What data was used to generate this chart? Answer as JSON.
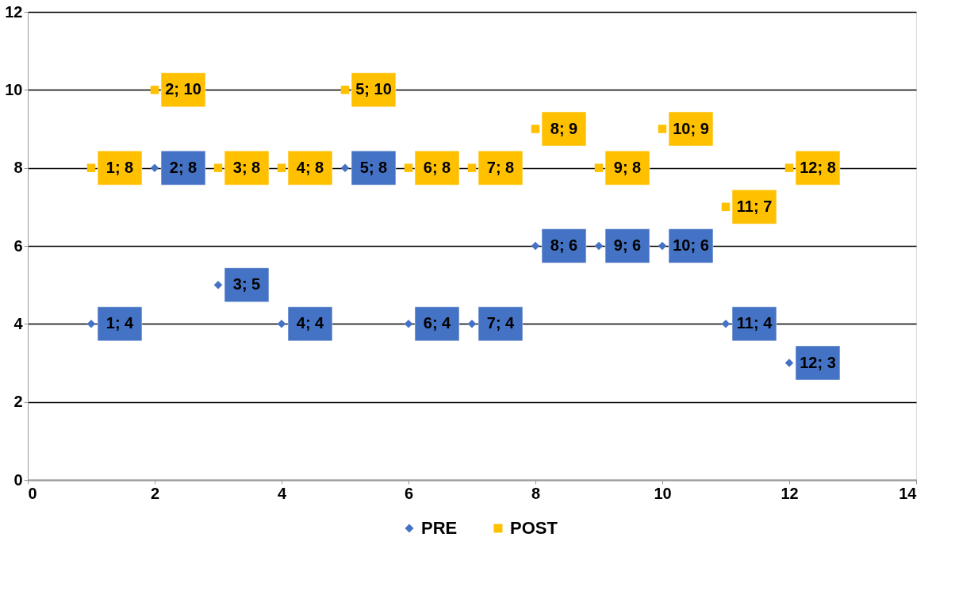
{
  "chart_data": {
    "type": "scatter",
    "x": [
      1,
      2,
      3,
      4,
      5,
      6,
      7,
      8,
      9,
      10,
      11,
      12
    ],
    "series": [
      {
        "name": "PRE",
        "color": "#4472c4",
        "marker": "diamond",
        "values": [
          4,
          8,
          5,
          4,
          8,
          4,
          4,
          6,
          6,
          6,
          4,
          3
        ],
        "value_labels": [
          "1; 4",
          "2; 8",
          "3; 5",
          "4; 4",
          "5; 8",
          "6; 4",
          "7; 4",
          "8; 6",
          "9; 6",
          "10; 6",
          "11; 4",
          "12; 3"
        ]
      },
      {
        "name": "POST",
        "color": "#ffc000",
        "marker": "square",
        "values": [
          8,
          10,
          8,
          8,
          10,
          8,
          8,
          9,
          8,
          9,
          7,
          8
        ],
        "value_labels": [
          "1; 8",
          "2; 10",
          "3; 8",
          "4; 8",
          "5; 10",
          "6; 8",
          "7; 8",
          "8; 9",
          "9; 8",
          "10; 9",
          "11; 7",
          "12; 8"
        ]
      }
    ],
    "xlim": [
      0,
      14
    ],
    "xticks": [
      0,
      2,
      4,
      6,
      8,
      10,
      12,
      14
    ],
    "ylim": [
      0,
      12
    ],
    "yticks": [
      0,
      2,
      4,
      6,
      8,
      10,
      12
    ],
    "grid": "y",
    "legend": "bottom"
  }
}
